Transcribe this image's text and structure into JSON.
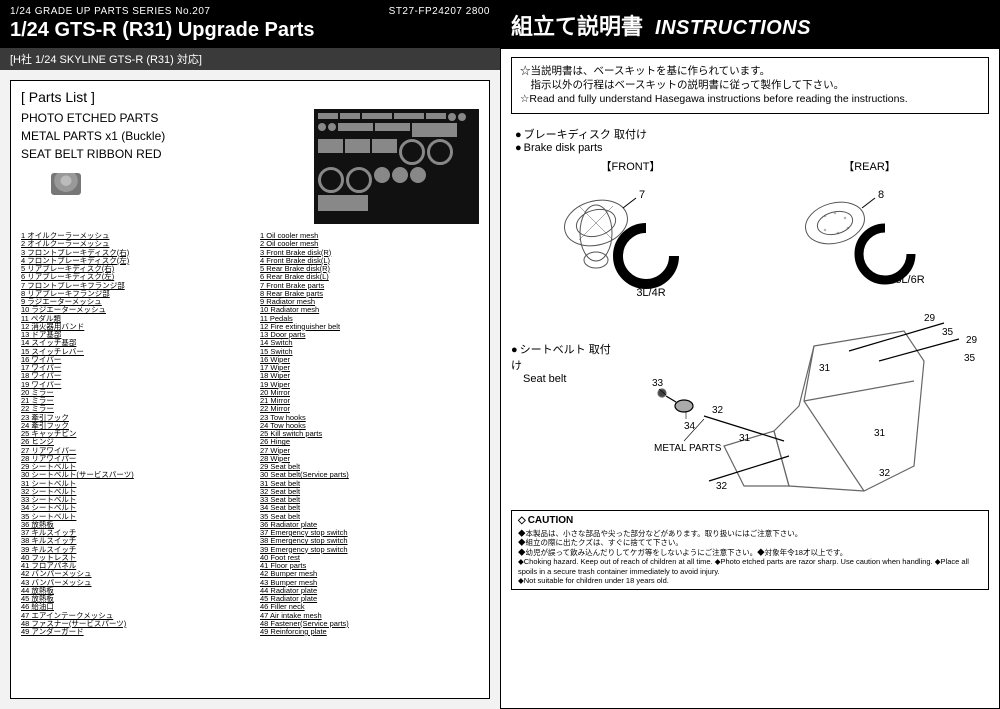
{
  "header": {
    "series": "1/24 GRADE UP PARTS SERIES No.207",
    "code": "ST27-FP24207 2800",
    "title": "1/24  GTS-R (R31) Upgrade Parts",
    "compat": "[H社 1/24 SKYLINE GTS-R (R31) 対応]"
  },
  "partsList": {
    "title": "[ Parts List ]",
    "included": [
      "PHOTO ETCHED PARTS",
      "METAL PARTS x1 (Buckle)",
      "SEAT BELT RIBBON  RED"
    ]
  },
  "partsJP": [
    "1 オイルクーラーメッシュ",
    "2 オイルクーラーメッシュ",
    "3 フロントブレーキディスク(右)",
    "4 フロントブレーキディスク(左)",
    "5 リアブレーキディスク(右)",
    "6 リアブレーキディスク(左)",
    "7 フロントブレーキフランジ部",
    "8 リアブレーキフランジ部",
    "9 ラジエーターメッシュ",
    "10 ラジエーターメッシュ",
    "11 ペダル類",
    "12 消火器用バンド",
    "13 ドア基部",
    "14 スイッチ基部",
    "15 スイッチレバー",
    "16 ワイパー",
    "17 ワイパー",
    "18 ワイパー",
    "19 ワイパー",
    "20 ミラー",
    "21 ミラー",
    "22 ミラー",
    "23 牽引フック",
    "24 牽引フック",
    "25 キャッチピン",
    "26 ヒンジ",
    "27 リアワイパー",
    "28 リアワイパー",
    "29 シートベルト",
    "30 シートベルト(サービスパーツ)",
    "31 シートベルト",
    "32 シートベルト",
    "33 シートベルト",
    "34 シートベルト",
    "35 シートベルト",
    "36 放熱板",
    "37 キルスイッチ",
    "38 キルスイッチ",
    "39 キルスイッチ",
    "40 フットレスト",
    "41 フロアパネル",
    "42 バンパーメッシュ",
    "43 バンパーメッシュ",
    "44 放熱板",
    "45 放熱板",
    "46 給油口",
    "47 エアインテークメッシュ",
    "48 ファスナー(サービスパーツ)",
    "49 アンダーガード"
  ],
  "partsEN": [
    "1 Oil cooler mesh",
    "2 Oil cooler mesh",
    "3 Front Brake disk(R)",
    "4 Front Brake disk(L)",
    "5 Rear Brake disk(R)",
    "6 Rear Brake disk(L)",
    "7 Front Brake parts",
    "8 Rear Brake parts",
    "9 Radiator mesh",
    "10 Radiator mesh",
    "11 Pedals",
    "12 Fire extinguisher belt",
    "13 Door parts",
    "14 Switch",
    "15 Switch",
    "16 Wiper",
    "17 Wiper",
    "18 Wiper",
    "19 Wiper",
    "20 Mirror",
    "21 Mirror",
    "22 Mirror",
    "23 Tow hooks",
    "24 Tow hooks",
    "25 Kill switch parts",
    "26 Hinge",
    "27 Wiper",
    "28 Wiper",
    "29 Seat belt",
    "30 Seat belt(Service parts)",
    "31 Seat belt",
    "32 Seat belt",
    "33 Seat belt",
    "34 Seat belt",
    "35 Seat belt",
    "36 Radiator plate",
    "37 Emergency stop switch",
    "38 Emergency stop switch",
    "39 Emergency stop switch",
    "40 Foot rest",
    "41 Floor parts",
    "42 Bumper mesh",
    "43 Bumper mesh",
    "44 Radiator plate",
    "45 Radiator plate",
    "46 Filler neck",
    "47 Air intake mesh",
    "48 Fastener(Service parts)",
    "49 Reinforcing plate"
  ],
  "instructions": {
    "titleJP": "組立て説明書",
    "titleEN": "INSTRUCTIONS",
    "notes": [
      "☆当説明書は、ベースキットを基に作られています。",
      "　指示以外の行程はベースキットの説明書に従って製作して下さい。",
      "☆Read and fully understand Hasegawa instructions before reading the instructions."
    ],
    "brakeJP": "ブレーキディスク 取付け",
    "brakeEN": "Brake disk parts",
    "frontLabel": "【FRONT】",
    "rearLabel": "【REAR】",
    "callout7": "7",
    "callout8": "8",
    "calloutFront": "3L/4R",
    "calloutRear": "5L/6R",
    "seatJP": "シートベルト 取付け",
    "seatEN": "Seat belt",
    "metalParts": "METAL PARTS",
    "seatCallouts": {
      "c29a": "29",
      "c29b": "29",
      "c31a": "31",
      "c31b": "31",
      "c31c": "31",
      "c32a": "32",
      "c32b": "32",
      "c32c": "32",
      "c33": "33",
      "c34": "34",
      "c35a": "35",
      "c35b": "35"
    }
  },
  "caution": {
    "title": "CAUTION",
    "lines": [
      "◆本製品は、小さな部品や尖った部分などがあります。取り扱いにはご注意下さい。",
      "◆組立の際に出たクズは、すぐに捨てて下さい。",
      "◆幼児が誤って飲み込んだりしてケガ等をしないようにご注意下さい。◆対象年令18才以上です。",
      "◆Choking hazard. Keep out of reach of children at all time. ◆Photo etched parts are razor sharp. Use caution when handling. ◆Place all spoils in a secure trash container immediately to avoid injury.",
      "◆Not suitable for children under 18 years old."
    ]
  }
}
